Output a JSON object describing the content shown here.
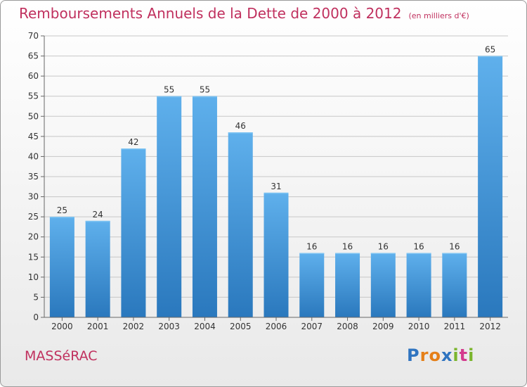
{
  "header": {
    "title": "Remboursements Annuels de la Dette de 2000 à 2012",
    "unit": "(en milliers d'€)"
  },
  "footer": {
    "commune": "MASSéRAC",
    "logo_letters": [
      "P",
      "r",
      "o",
      "x",
      "i",
      "t",
      "i"
    ],
    "logo_colors": [
      "#2f74c0",
      "#e57f18",
      "#e57f18",
      "#2f74c0",
      "#7bb52d",
      "#d43b8e",
      "#7bb52d"
    ]
  },
  "colors": {
    "title": "#c0305e",
    "bar": "#3f97dd",
    "bar_light": "#5fb0ec",
    "bar_dark": "#2a78bd",
    "grid": "#c7c7c7",
    "axis": "#666666"
  },
  "chart_data": {
    "type": "bar",
    "categories": [
      "2000",
      "2001",
      "2002",
      "2003",
      "2004",
      "2005",
      "2006",
      "2007",
      "2008",
      "2009",
      "2010",
      "2011",
      "2012"
    ],
    "values": [
      25,
      24,
      42,
      55,
      55,
      46,
      31,
      16,
      16,
      16,
      16,
      16,
      65
    ],
    "ylim": [
      0,
      70
    ],
    "ytick_step": 5,
    "grid": true,
    "data_labels": true,
    "title": "Remboursements Annuels de la Dette de 2000 à 2012",
    "xlabel": "",
    "ylabel": ""
  }
}
